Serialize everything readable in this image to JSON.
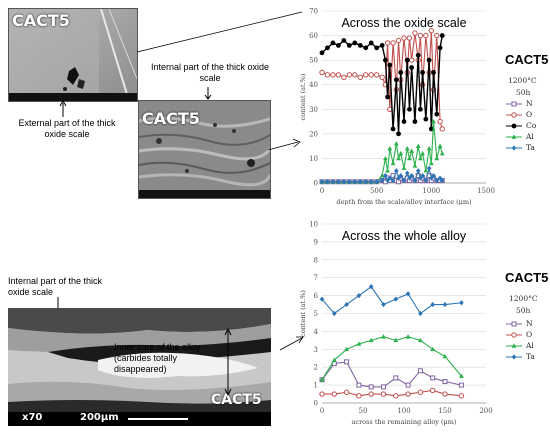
{
  "top": {
    "image1_label": "CACT5",
    "image2_label": "CACT5",
    "caption_external": "External part of the thick oxide scale",
    "caption_internal": "Internal part of the thick oxide scale",
    "chart_title": "Across the oxide scale",
    "legend": {
      "title": "CACT5",
      "temp": "1200°C",
      "time": "50h",
      "items": [
        "N",
        "O",
        "Co",
        "Al",
        "Ta"
      ]
    }
  },
  "bottom": {
    "image_label": "CACT5",
    "caption_internal": "Internal part of the thick oxide scale",
    "caption_core": "Inner core of the alloy (carbides totally disappeared)",
    "scale_mag": "x70",
    "scale_len": "200µm",
    "chart_title": "Across the whole alloy",
    "legend": {
      "title": "CACT5",
      "temp": "1200°C",
      "time": "50h",
      "items": [
        "N",
        "O",
        "Al",
        "Ta"
      ]
    }
  },
  "colors": {
    "N": "#8064a2",
    "O": "#c0504d",
    "Co": "#000000",
    "Al": "#2bb04a",
    "Ta": "#2e75b6"
  },
  "chart_data": [
    {
      "type": "line",
      "title": "Across the oxide scale",
      "xlabel": "depth from the scale/alloy interface (µm)",
      "ylabel": "content (at.%)",
      "xlim": [
        0,
        1500
      ],
      "ylim": [
        0,
        70
      ],
      "xticks": [
        0,
        500,
        1000,
        1500
      ],
      "yticks": [
        0,
        10,
        20,
        30,
        40,
        50,
        60,
        70
      ],
      "series": [
        {
          "name": "N",
          "x": [
            0,
            50,
            100,
            150,
            200,
            250,
            300,
            350,
            400,
            450,
            500,
            550,
            580,
            600,
            620,
            650,
            680,
            700,
            720,
            750,
            780,
            800,
            820,
            850,
            880,
            900,
            920,
            950,
            980,
            1000,
            1020,
            1050,
            1080,
            1100
          ],
          "values": [
            0.5,
            0.5,
            0.5,
            0.5,
            0.5,
            0.5,
            0.5,
            0.5,
            0.5,
            0.5,
            0.5,
            1,
            0.5,
            2,
            1,
            3,
            1,
            0.5,
            2,
            1,
            2,
            1,
            2,
            1,
            3,
            1,
            2,
            1,
            3,
            1,
            2,
            1,
            1,
            1
          ]
        },
        {
          "name": "O",
          "x": [
            0,
            50,
            100,
            150,
            200,
            250,
            300,
            350,
            400,
            450,
            500,
            550,
            580,
            600,
            620,
            650,
            680,
            700,
            720,
            750,
            780,
            800,
            820,
            850,
            880,
            900,
            920,
            950,
            980,
            1000,
            1020,
            1050,
            1080,
            1100
          ],
          "values": [
            45,
            44,
            44,
            44,
            43,
            44,
            44,
            43,
            44,
            44,
            44,
            43,
            40,
            57,
            30,
            57,
            38,
            58,
            42,
            59,
            45,
            59,
            50,
            61,
            50,
            60,
            40,
            60,
            45,
            62,
            38,
            60,
            25,
            22
          ]
        },
        {
          "name": "Co",
          "x": [
            0,
            50,
            100,
            150,
            200,
            250,
            300,
            350,
            400,
            450,
            500,
            550,
            580,
            600,
            620,
            650,
            680,
            700,
            720,
            750,
            780,
            800,
            820,
            850,
            880,
            900,
            920,
            950,
            980,
            1000,
            1020,
            1050,
            1080,
            1100
          ],
          "values": [
            53,
            55,
            57,
            56,
            58,
            56,
            57,
            56,
            55,
            57,
            55,
            56,
            50,
            35,
            48,
            22,
            42,
            20,
            45,
            25,
            50,
            30,
            47,
            25,
            52,
            30,
            45,
            26,
            50,
            22,
            45,
            28,
            55,
            60
          ]
        },
        {
          "name": "Al",
          "x": [
            0,
            50,
            100,
            150,
            200,
            250,
            300,
            350,
            400,
            450,
            500,
            550,
            580,
            600,
            620,
            650,
            680,
            700,
            720,
            750,
            780,
            800,
            820,
            850,
            880,
            900,
            920,
            950,
            980,
            1000,
            1020,
            1050,
            1080,
            1100
          ],
          "values": [
            0.5,
            0.5,
            0.5,
            0.5,
            0.5,
            0.5,
            0.5,
            0.5,
            0.5,
            0.5,
            0.5,
            3,
            10,
            5,
            14,
            8,
            16,
            10,
            12,
            6,
            14,
            10,
            13,
            7,
            15,
            10,
            12,
            5,
            14,
            8,
            25,
            10,
            15,
            12
          ]
        },
        {
          "name": "Ta",
          "x": [
            0,
            50,
            100,
            150,
            200,
            250,
            300,
            350,
            400,
            450,
            500,
            550,
            580,
            600,
            620,
            650,
            680,
            700,
            720,
            750,
            780,
            800,
            820,
            850,
            880,
            900,
            920,
            950,
            980,
            1000,
            1020,
            1050,
            1080,
            1100
          ],
          "values": [
            0.5,
            0.5,
            0.5,
            0.5,
            0.5,
            0.5,
            0.5,
            0.5,
            0.5,
            0.5,
            0.5,
            1,
            3,
            1,
            2,
            1,
            5,
            2,
            3,
            1,
            4,
            2,
            3,
            1,
            5,
            2,
            3,
            1,
            6,
            2,
            3,
            1,
            2,
            1
          ]
        }
      ]
    },
    {
      "type": "line",
      "title": "Across the whole alloy",
      "xlabel": "across the remaining alloy (µm)",
      "ylabel": "content (at.%)",
      "xlim": [
        0,
        200
      ],
      "ylim": [
        0,
        10
      ],
      "xticks": [
        0,
        50,
        100,
        150,
        200
      ],
      "yticks": [
        0,
        1,
        2,
        3,
        4,
        5,
        6,
        7,
        8,
        9,
        10
      ],
      "series": [
        {
          "name": "N",
          "x": [
            0,
            15,
            30,
            45,
            60,
            75,
            90,
            105,
            120,
            135,
            150,
            170
          ],
          "values": [
            1.3,
            2.2,
            2.3,
            1.0,
            0.9,
            0.9,
            1.4,
            1.0,
            1.8,
            1.4,
            1.2,
            1.0
          ]
        },
        {
          "name": "O",
          "x": [
            0,
            15,
            30,
            45,
            60,
            75,
            90,
            105,
            120,
            135,
            150,
            170
          ],
          "values": [
            0.5,
            0.5,
            0.6,
            0.4,
            0.5,
            0.5,
            0.4,
            0.5,
            0.6,
            0.7,
            0.5,
            0.4
          ]
        },
        {
          "name": "Al",
          "x": [
            0,
            15,
            30,
            45,
            60,
            75,
            90,
            105,
            120,
            135,
            150,
            170
          ],
          "values": [
            1.3,
            2.4,
            3.0,
            3.3,
            3.5,
            3.7,
            3.5,
            3.7,
            3.5,
            3.0,
            2.6,
            1.5
          ]
        },
        {
          "name": "Ta",
          "x": [
            0,
            15,
            30,
            45,
            60,
            75,
            90,
            105,
            120,
            135,
            150,
            170
          ],
          "values": [
            5.8,
            5.0,
            5.5,
            6.0,
            6.5,
            5.5,
            5.8,
            6.1,
            5.0,
            5.5,
            5.5,
            5.6
          ]
        }
      ]
    }
  ]
}
